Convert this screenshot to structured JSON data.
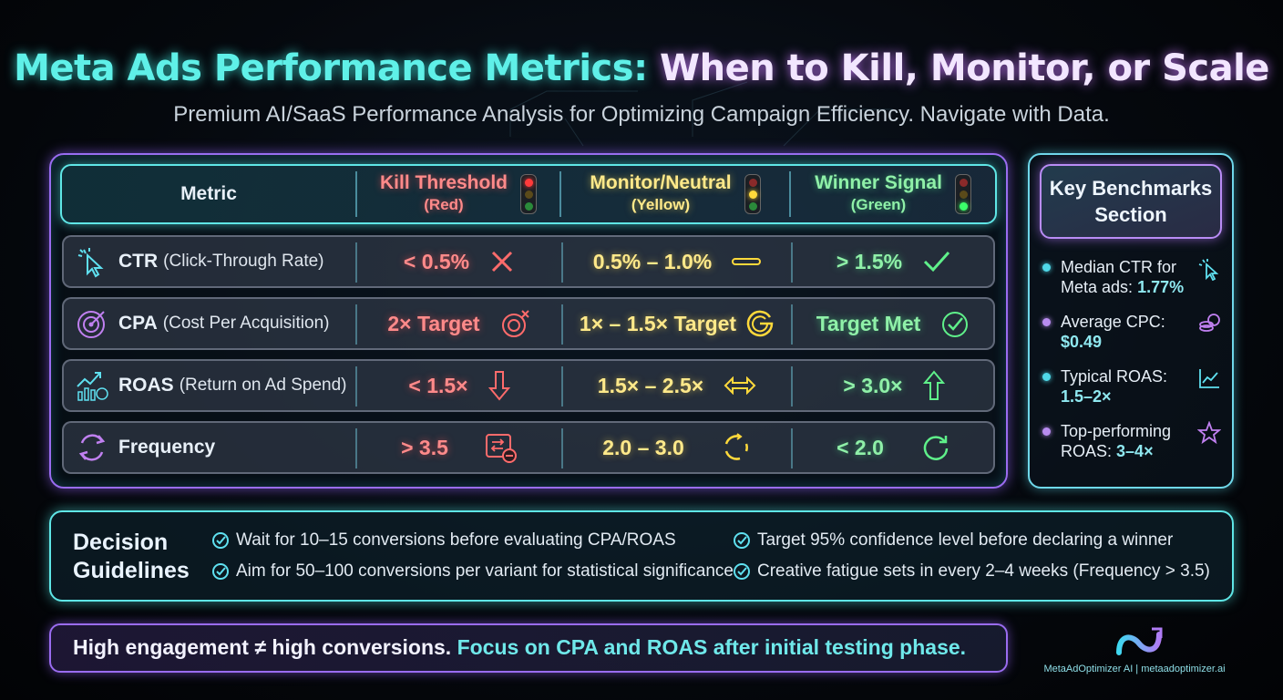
{
  "header": {
    "title_part1": "Meta Ads Performance Metrics:",
    "title_part2": "When to Kill, Monitor, or Scale",
    "subtitle": "Premium AI/SaaS Performance Analysis for Optimizing Campaign Efficiency. Navigate with Data."
  },
  "table": {
    "columns": {
      "metric": "Metric",
      "kill": "Kill Threshold",
      "kill_sub": "(Red)",
      "monitor": "Monitor/Neutral",
      "monitor_sub": "(Yellow)",
      "winner": "Winner Signal",
      "winner_sub": "(Green)"
    },
    "rows": [
      {
        "name": "CTR",
        "desc": "(Click-Through Rate)",
        "kill": "< 0.5%",
        "monitor": "0.5% – 1.0%",
        "winner": "> 1.5%"
      },
      {
        "name": "CPA",
        "desc": "(Cost Per Acquisition)",
        "kill": "2× Target",
        "monitor": "1× – 1.5× Target",
        "winner": "Target Met"
      },
      {
        "name": "ROAS",
        "desc": "(Return on Ad Spend)",
        "kill": "< 1.5×",
        "monitor": "1.5× – 2.5×",
        "winner": "> 3.0×"
      },
      {
        "name": "Frequency",
        "desc": "",
        "kill": "> 3.5",
        "monitor": "2.0 – 3.0",
        "winner": "< 2.0"
      }
    ]
  },
  "benchmarks": {
    "title_line1": "Key Benchmarks",
    "title_line2": "Section",
    "items": [
      {
        "line1": "Median CTR for",
        "line2": "Meta ads:",
        "value": "1.77%",
        "icon": "cursor-icon",
        "dot": "#4fd8e8"
      },
      {
        "line1": "Average CPC:",
        "line2": "",
        "value": "$0.49",
        "icon": "coins-icon",
        "dot": "#b88cf0"
      },
      {
        "line1": "Typical ROAS:",
        "line2": "",
        "value": "1.5–2×",
        "icon": "trend-chart-icon",
        "dot": "#4fd8e8"
      },
      {
        "line1": "Top-performing",
        "line2": "ROAS:",
        "value": "3–4×",
        "icon": "star-icon",
        "dot": "#b88cf0"
      }
    ]
  },
  "decision": {
    "title_line1": "Decision",
    "title_line2": "Guidelines",
    "guides": [
      "Wait for 10–15 conversions before evaluating CPA/ROAS",
      "Aim for 50–100 conversions per variant for statistical significance",
      "Target 95% confidence level before declaring a winner",
      "Creative fatigue sets in every 2–4 weeks (Frequency > 3.5)"
    ]
  },
  "banner": {
    "part1": "High engagement ≠ high conversions.",
    "part2": "Focus on CPA and ROAS after initial testing phase."
  },
  "brand": {
    "name": "MetaAdOptimizer AI | metaadoptimizer.ai"
  },
  "colors": {
    "red": "#ff8a8a",
    "yellow": "#ffe98a",
    "green": "#8ff0a8",
    "cyan": "#5fe6e6",
    "purple": "#9a6cf0"
  }
}
